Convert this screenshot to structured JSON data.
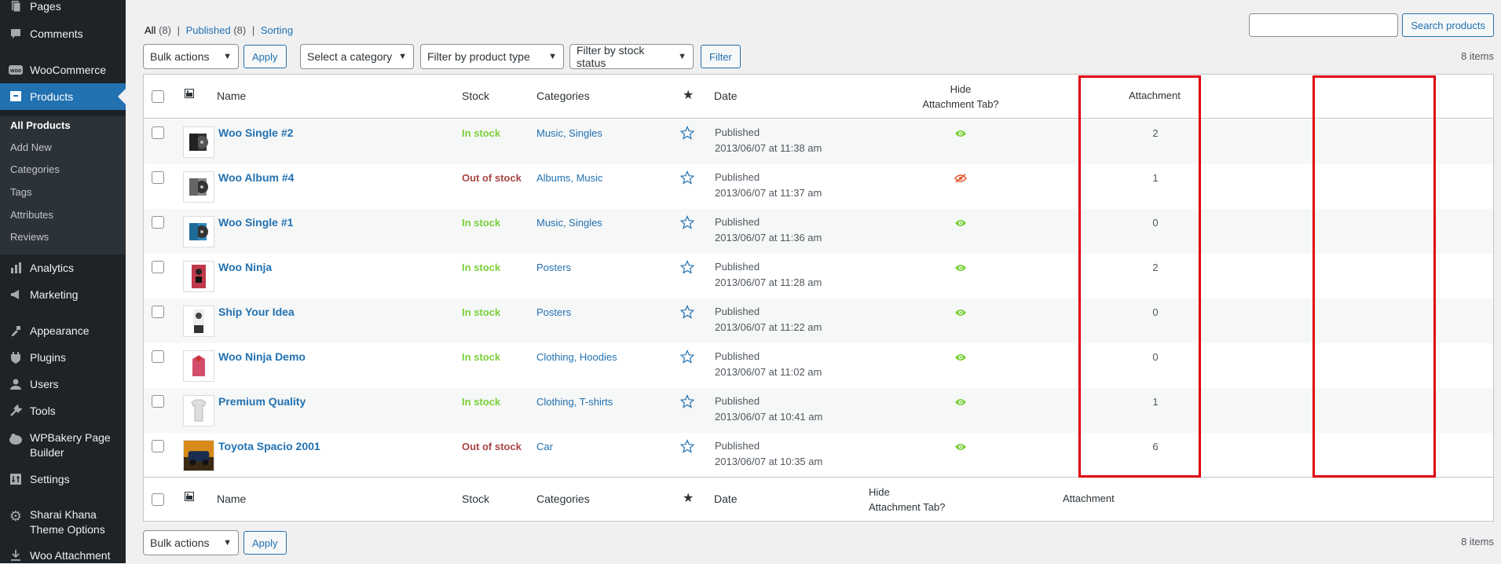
{
  "sidebar": {
    "items": [
      {
        "label": "Pages",
        "icon": "pages-icon"
      },
      {
        "label": "Comments",
        "icon": "comments-icon"
      },
      {
        "label": "WooCommerce",
        "icon": "woocommerce-icon"
      },
      {
        "label": "Products",
        "icon": "products-icon"
      },
      {
        "label": "Analytics",
        "icon": "analytics-icon"
      },
      {
        "label": "Marketing",
        "icon": "marketing-icon"
      },
      {
        "label": "Appearance",
        "icon": "appearance-icon"
      },
      {
        "label": "Plugins",
        "icon": "plugins-icon"
      },
      {
        "label": "Users",
        "icon": "users-icon"
      },
      {
        "label": "Tools",
        "icon": "tools-icon"
      },
      {
        "label": "WPBakery Page Builder",
        "icon": "wpbakery-icon"
      },
      {
        "label": "Settings",
        "icon": "settings-icon"
      },
      {
        "label": "Sharai Khana Theme Options",
        "icon": "gear-icon"
      },
      {
        "label": "Woo Attachment",
        "icon": "download-icon"
      }
    ],
    "submenu": [
      "All Products",
      "Add New",
      "Categories",
      "Tags",
      "Attributes",
      "Reviews"
    ]
  },
  "views": {
    "all": "All",
    "all_count": "(8)",
    "sep": "|",
    "published": "Published",
    "published_count": "(8)",
    "sorting": "Sorting"
  },
  "search": {
    "button": "Search products",
    "value": ""
  },
  "filters": {
    "bulk": "Bulk actions",
    "apply": "Apply",
    "category": "Select a category",
    "type": "Filter by product type",
    "stock": "Filter by stock status",
    "filter": "Filter"
  },
  "items_count": "8 items",
  "columns": {
    "name": "Name",
    "stock": "Stock",
    "categories": "Categories",
    "date": "Date",
    "hide_line1": "Hide",
    "hide_line2": "Attachment Tab?",
    "attachment": "Attachment"
  },
  "products": [
    {
      "name": "Woo Single #2",
      "stock": "In stock",
      "categories": "Music, Singles",
      "status": "Published",
      "date": "2013/06/07 at 11:38 am",
      "hidden": false,
      "attachments": "2"
    },
    {
      "name": "Woo Album #4",
      "stock": "Out of stock",
      "categories": "Albums, Music",
      "status": "Published",
      "date": "2013/06/07 at 11:37 am",
      "hidden": true,
      "attachments": "1"
    },
    {
      "name": "Woo Single #1",
      "stock": "In stock",
      "categories": "Music, Singles",
      "status": "Published",
      "date": "2013/06/07 at 11:36 am",
      "hidden": false,
      "attachments": "0"
    },
    {
      "name": "Woo Ninja",
      "stock": "In stock",
      "categories": "Posters",
      "status": "Published",
      "date": "2013/06/07 at 11:28 am",
      "hidden": false,
      "attachments": "2"
    },
    {
      "name": "Ship Your Idea",
      "stock": "In stock",
      "categories": "Posters",
      "status": "Published",
      "date": "2013/06/07 at 11:22 am",
      "hidden": false,
      "attachments": "0"
    },
    {
      "name": "Woo Ninja Demo",
      "stock": "In stock",
      "categories": "Clothing, Hoodies",
      "status": "Published",
      "date": "2013/06/07 at 11:02 am",
      "hidden": false,
      "attachments": "0"
    },
    {
      "name": "Premium Quality",
      "stock": "In stock",
      "categories": "Clothing, T-shirts",
      "status": "Published",
      "date": "2013/06/07 at 10:41 am",
      "hidden": false,
      "attachments": "1"
    },
    {
      "name": "Toyota Spacio 2001",
      "stock": "Out of stock",
      "categories": "Car",
      "status": "Published",
      "date": "2013/06/07 at 10:35 am",
      "hidden": false,
      "attachments": "6"
    }
  ],
  "colors": {
    "accent": "#2271b1",
    "in_stock": "#7ad03a",
    "out_of_stock": "#aa4444",
    "highlight": "#e0000f"
  }
}
